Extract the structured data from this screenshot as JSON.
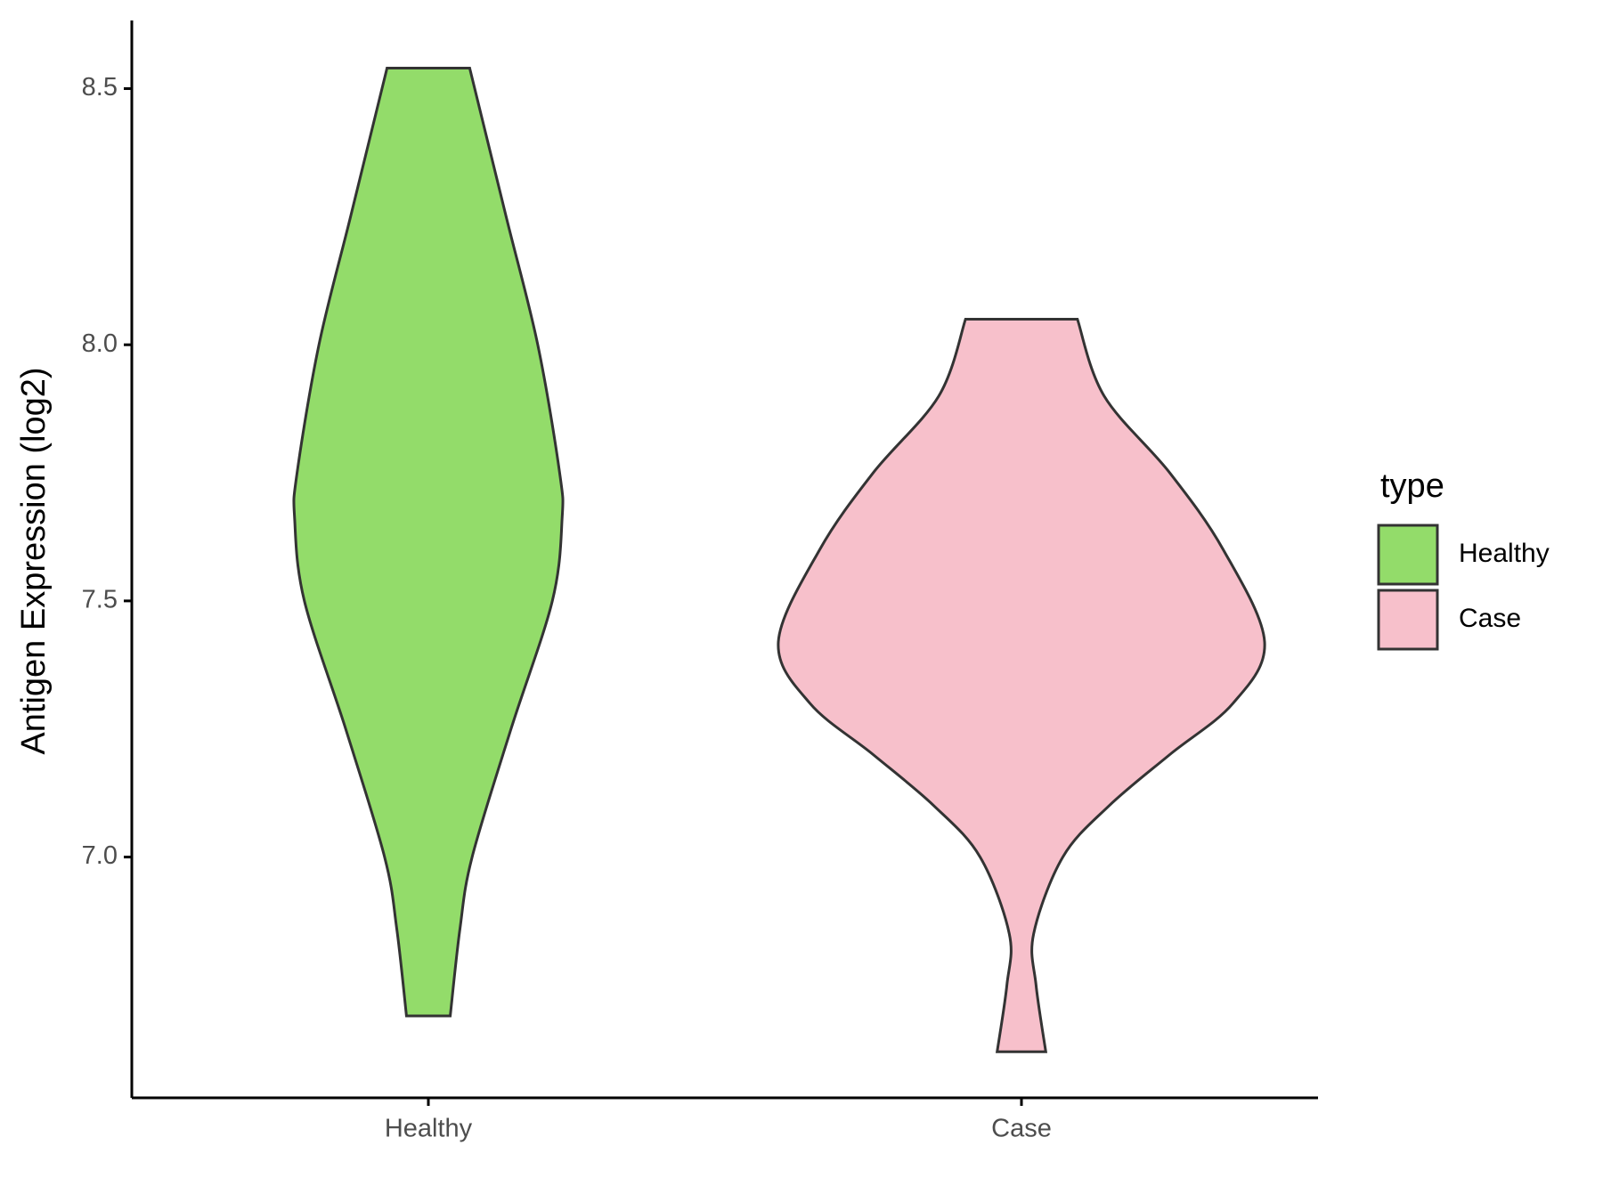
{
  "chart_data": {
    "type": "violin",
    "y_label": "Antigen Expression (log2)",
    "categories": [
      "Healthy",
      "Case"
    ],
    "legend_title": "type",
    "ylim": [
      6.53,
      8.633
    ],
    "yticks": [
      {
        "value": 7,
        "label": "7.0"
      },
      7.5,
      {
        "value": 8,
        "label": "8.0"
      },
      8.5
    ],
    "series": [
      {
        "name": "Healthy",
        "color": "#93dc6a",
        "y": [
          8.54,
          8.25,
          8.0,
          7.75,
          7.66,
          7.5,
          7.25,
          7.0,
          6.86,
          6.69
        ],
        "density": [
          0.17,
          0.32,
          0.45,
          0.54,
          0.55,
          0.51,
          0.34,
          0.18,
          0.13,
          0.09
        ]
      },
      {
        "name": "Case",
        "color": "#f7c0cb",
        "y": [
          8.05,
          7.9,
          7.75,
          7.6,
          7.42,
          7.3,
          7.2,
          7.1,
          7.0,
          6.85,
          6.75,
          6.62
        ],
        "density": [
          0.23,
          0.34,
          0.61,
          0.83,
          1.0,
          0.87,
          0.61,
          0.36,
          0.17,
          0.05,
          0.06,
          0.1
        ]
      }
    ]
  }
}
